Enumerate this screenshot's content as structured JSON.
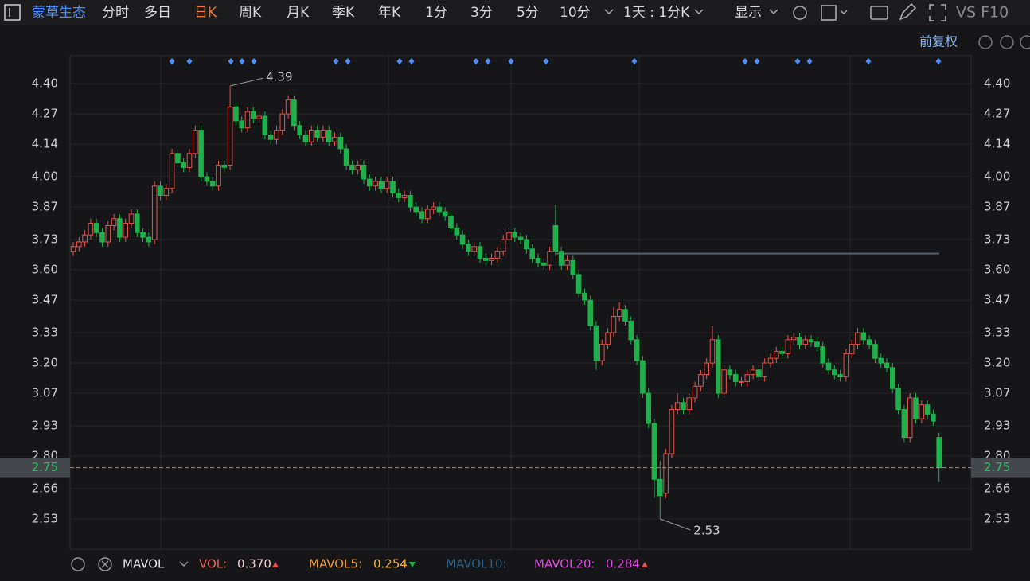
{
  "toolbar": {
    "stock": "蒙草生态",
    "periods": [
      "分时",
      "多日",
      "日K",
      "周K",
      "月K",
      "季K",
      "年K",
      "1分",
      "3分",
      "5分",
      "10分"
    ],
    "interval": "1天 : 1分K",
    "display": "显示",
    "tools": "VS F10"
  },
  "adjust": "前复权",
  "indicator": {
    "name": "MAVOL",
    "vol_label": "VOL:",
    "vol": "0.370",
    "ma5_label": "MAVOL5:",
    "ma5": "0.254",
    "ma10_label": "MAVOL10:",
    "ma20_label": "MAVOL20:",
    "ma20": "0.284"
  },
  "chart_data": {
    "type": "candlestick",
    "up_color": "#e8524a",
    "down_color": "#1fb04b",
    "ylim": [
      2.4,
      4.52
    ],
    "yticks": [
      {
        "value": 4.4,
        "label": "4.40"
      },
      4.27,
      4.14,
      {
        "value": 4.0,
        "label": "4.00"
      },
      3.87,
      3.73,
      {
        "value": 3.6,
        "label": "3.60"
      },
      3.47,
      3.33,
      {
        "value": 3.2,
        "label": "3.20"
      },
      3.07,
      2.93,
      {
        "value": 2.8,
        "label": "2.80"
      },
      2.66,
      2.53
    ],
    "last_price": 2.75,
    "max_price": 4.39,
    "min_price": 2.53,
    "level_line": 3.67,
    "open": [
      3.68,
      3.7,
      3.72,
      3.75,
      3.8,
      3.76,
      3.72,
      3.79,
      3.82,
      3.74,
      3.8,
      3.84,
      3.76,
      3.74,
      3.73,
      3.96,
      3.92,
      3.95,
      4.1,
      4.06,
      4.04,
      4.1,
      4.2,
      4.0,
      3.98,
      3.96,
      4.05,
      4.05,
      4.3,
      4.24,
      4.21,
      4.28,
      4.25,
      4.26,
      4.18,
      4.16,
      4.2,
      4.27,
      4.33,
      4.22,
      4.18,
      4.15,
      4.2,
      4.17,
      4.2,
      4.15,
      4.17,
      4.12,
      4.05,
      4.03,
      4.05,
      3.99,
      3.96,
      3.98,
      3.95,
      3.98,
      3.93,
      3.91,
      3.92,
      3.87,
      3.85,
      3.82,
      3.86,
      3.87,
      3.85,
      3.83,
      3.78,
      3.75,
      3.71,
      3.68,
      3.7,
      3.65,
      3.64,
      3.65,
      3.68,
      3.73,
      3.76,
      3.74,
      3.73,
      3.69,
      3.65,
      3.63,
      3.62,
      3.79,
      3.68,
      3.62,
      3.64,
      3.58,
      3.5,
      3.47,
      3.36,
      3.21,
      3.28,
      3.33,
      3.4,
      3.43,
      3.38,
      3.3,
      3.21,
      3.07,
      2.94,
      2.7,
      2.64,
      2.81,
      3.0,
      3.03,
      3.0,
      3.05,
      3.1,
      3.15,
      3.2,
      3.3,
      3.07,
      3.17,
      3.15,
      3.12,
      3.12,
      3.15,
      3.17,
      3.14,
      3.2,
      3.22,
      3.25,
      3.24,
      3.3,
      3.31,
      3.28,
      3.3,
      3.29,
      3.27,
      3.2,
      3.17,
      3.15,
      3.14,
      3.24,
      3.28,
      3.33,
      3.3,
      3.28,
      3.22,
      3.2,
      3.18,
      3.09,
      3.0,
      2.88,
      3.05,
      2.96,
      3.02,
      2.98,
      2.88
    ],
    "high": [
      3.72,
      3.74,
      3.77,
      3.82,
      3.82,
      3.78,
      3.81,
      3.84,
      3.84,
      3.82,
      3.86,
      3.86,
      3.78,
      3.76,
      3.98,
      3.98,
      3.97,
      4.12,
      4.12,
      4.08,
      4.12,
      4.22,
      4.22,
      4.02,
      4.0,
      4.07,
      4.07,
      4.39,
      4.32,
      4.26,
      4.3,
      4.3,
      4.28,
      4.28,
      4.2,
      4.22,
      4.29,
      4.35,
      4.35,
      4.24,
      4.2,
      4.22,
      4.22,
      4.22,
      4.22,
      4.19,
      4.19,
      4.14,
      4.07,
      4.07,
      4.07,
      4.01,
      4.0,
      4.0,
      4.0,
      4.0,
      3.95,
      3.94,
      3.94,
      3.89,
      3.87,
      3.88,
      3.89,
      3.89,
      3.87,
      3.85,
      3.8,
      3.77,
      3.73,
      3.72,
      3.72,
      3.67,
      3.67,
      3.7,
      3.75,
      3.78,
      3.78,
      3.76,
      3.75,
      3.71,
      3.67,
      3.65,
      3.7,
      3.88,
      3.7,
      3.66,
      3.66,
      3.6,
      3.52,
      3.49,
      3.38,
      3.3,
      3.35,
      3.44,
      3.46,
      3.45,
      3.4,
      3.32,
      3.23,
      3.09,
      2.96,
      2.78,
      2.83,
      3.02,
      3.07,
      3.05,
      3.07,
      3.12,
      3.17,
      3.22,
      3.36,
      3.32,
      3.19,
      3.19,
      3.17,
      3.14,
      3.17,
      3.19,
      3.19,
      3.22,
      3.24,
      3.27,
      3.27,
      3.32,
      3.33,
      3.33,
      3.32,
      3.32,
      3.31,
      3.29,
      3.22,
      3.19,
      3.17,
      3.26,
      3.3,
      3.35,
      3.35,
      3.32,
      3.3,
      3.24,
      3.22,
      3.2,
      3.11,
      3.02,
      3.07,
      3.07,
      3.04,
      3.04,
      3.0,
      2.9
    ],
    "low": [
      3.66,
      3.68,
      3.7,
      3.73,
      3.74,
      3.7,
      3.7,
      3.77,
      3.72,
      3.72,
      3.78,
      3.74,
      3.72,
      3.7,
      3.71,
      3.9,
      3.9,
      3.93,
      4.04,
      4.02,
      4.02,
      4.08,
      3.98,
      3.96,
      3.94,
      3.94,
      4.02,
      4.03,
      4.22,
      4.19,
      4.19,
      4.23,
      4.23,
      4.16,
      4.14,
      4.14,
      4.18,
      4.25,
      4.2,
      4.16,
      4.13,
      4.13,
      4.15,
      4.15,
      4.13,
      4.13,
      4.1,
      4.03,
      4.01,
      4.01,
      3.97,
      3.94,
      3.94,
      3.93,
      3.93,
      3.91,
      3.89,
      3.89,
      3.85,
      3.83,
      3.8,
      3.8,
      3.84,
      3.83,
      3.81,
      3.76,
      3.73,
      3.69,
      3.66,
      3.66,
      3.63,
      3.62,
      3.62,
      3.63,
      3.66,
      3.71,
      3.72,
      3.71,
      3.67,
      3.63,
      3.61,
      3.6,
      3.6,
      3.66,
      3.6,
      3.6,
      3.56,
      3.48,
      3.45,
      3.34,
      3.17,
      3.19,
      3.26,
      3.31,
      3.38,
      3.36,
      3.28,
      3.19,
      3.05,
      2.92,
      2.62,
      2.53,
      2.62,
      2.79,
      2.98,
      2.98,
      2.98,
      3.03,
      3.08,
      3.13,
      3.18,
      3.05,
      3.05,
      3.13,
      3.1,
      3.1,
      3.1,
      3.13,
      3.12,
      3.12,
      3.18,
      3.2,
      3.22,
      3.22,
      3.28,
      3.26,
      3.26,
      3.27,
      3.25,
      3.18,
      3.15,
      3.13,
      3.12,
      3.12,
      3.22,
      3.26,
      3.28,
      3.26,
      3.2,
      3.18,
      3.16,
      3.07,
      2.98,
      2.86,
      2.86,
      2.94,
      2.94,
      2.96,
      2.93,
      2.69
    ],
    "close": [
      3.7,
      3.72,
      3.75,
      3.8,
      3.76,
      3.72,
      3.79,
      3.82,
      3.74,
      3.8,
      3.84,
      3.76,
      3.74,
      3.72,
      3.96,
      3.92,
      3.95,
      4.1,
      4.06,
      4.04,
      4.1,
      4.2,
      4.0,
      3.98,
      3.96,
      4.05,
      4.04,
      4.3,
      4.24,
      4.21,
      4.28,
      4.25,
      4.26,
      4.18,
      4.16,
      4.2,
      4.27,
      4.33,
      4.22,
      4.18,
      4.15,
      4.2,
      4.17,
      4.2,
      4.15,
      4.17,
      4.12,
      4.05,
      4.03,
      4.05,
      3.99,
      3.96,
      3.98,
      3.95,
      3.98,
      3.93,
      3.91,
      3.92,
      3.87,
      3.85,
      3.82,
      3.86,
      3.87,
      3.85,
      3.83,
      3.78,
      3.75,
      3.71,
      3.68,
      3.7,
      3.65,
      3.64,
      3.65,
      3.68,
      3.73,
      3.76,
      3.74,
      3.73,
      3.69,
      3.65,
      3.63,
      3.62,
      3.68,
      3.68,
      3.62,
      3.64,
      3.58,
      3.5,
      3.47,
      3.36,
      3.21,
      3.28,
      3.33,
      3.4,
      3.43,
      3.38,
      3.3,
      3.21,
      3.07,
      2.94,
      2.7,
      2.63,
      2.81,
      3.0,
      3.03,
      3.0,
      3.05,
      3.1,
      3.15,
      3.2,
      3.3,
      3.07,
      3.17,
      3.15,
      3.12,
      3.12,
      3.15,
      3.17,
      3.14,
      3.2,
      3.22,
      3.25,
      3.24,
      3.3,
      3.31,
      3.28,
      3.3,
      3.29,
      3.27,
      3.2,
      3.17,
      3.15,
      3.14,
      3.24,
      3.28,
      3.33,
      3.3,
      3.28,
      3.22,
      3.2,
      3.18,
      3.09,
      3.0,
      2.88,
      3.05,
      2.96,
      3.02,
      2.98,
      2.95,
      2.75
    ]
  }
}
